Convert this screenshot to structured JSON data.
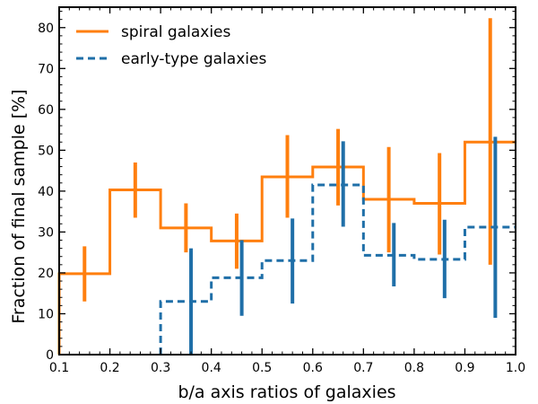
{
  "chart_data": {
    "type": "step",
    "title": "",
    "xlabel": "b/a axis ratios of galaxies",
    "ylabel": "Fraction of final sample [%]",
    "xlim": [
      0.1,
      1.0
    ],
    "ylim": [
      0,
      85
    ],
    "xticks": [
      "0.1",
      "0.2",
      "0.3",
      "0.4",
      "0.5",
      "0.6",
      "0.7",
      "0.8",
      "0.9",
      "1.0"
    ],
    "yticks": [
      "0",
      "10",
      "20",
      "30",
      "40",
      "50",
      "60",
      "70",
      "80"
    ],
    "legend_position": "top-left",
    "series": [
      {
        "name": "spiral galaxies",
        "color": "#ff7f0e",
        "linestyle": "solid",
        "bin_edges": [
          0.1,
          0.2,
          0.3,
          0.4,
          0.5,
          0.6,
          0.7,
          0.8,
          0.9,
          1.0
        ],
        "values": [
          19.8,
          40.3,
          31.0,
          27.8,
          43.5,
          45.9,
          38.0,
          37.0,
          52.0
        ],
        "errorbars": [
          {
            "x": 0.15,
            "low": 13.0,
            "high": 26.5
          },
          {
            "x": 0.25,
            "low": 33.5,
            "high": 47.0
          },
          {
            "x": 0.35,
            "low": 25.0,
            "high": 37.0
          },
          {
            "x": 0.45,
            "low": 21.0,
            "high": 34.5
          },
          {
            "x": 0.55,
            "low": 33.5,
            "high": 53.7
          },
          {
            "x": 0.65,
            "low": 36.5,
            "high": 55.2
          },
          {
            "x": 0.75,
            "low": 25.0,
            "high": 50.8
          },
          {
            "x": 0.85,
            "low": 24.5,
            "high": 49.3
          },
          {
            "x": 0.95,
            "low": 22.0,
            "high": 82.3
          }
        ]
      },
      {
        "name": "early-type galaxies",
        "color": "#1f6fa8",
        "linestyle": "dashed",
        "bin_edges": [
          0.3,
          0.4,
          0.5,
          0.6,
          0.7,
          0.8,
          0.9,
          1.0
        ],
        "values": [
          13.0,
          18.8,
          23.0,
          41.5,
          24.3,
          23.3,
          31.2
        ],
        "errorbars": [
          {
            "x": 0.36,
            "low": 0.0,
            "high": 26.0
          },
          {
            "x": 0.46,
            "low": 9.5,
            "high": 28.0
          },
          {
            "x": 0.56,
            "low": 12.5,
            "high": 33.3
          },
          {
            "x": 0.66,
            "low": 31.3,
            "high": 52.2
          },
          {
            "x": 0.76,
            "low": 16.7,
            "high": 32.2
          },
          {
            "x": 0.86,
            "low": 13.8,
            "high": 33.0
          },
          {
            "x": 0.96,
            "low": 9.0,
            "high": 53.3
          }
        ]
      }
    ]
  }
}
